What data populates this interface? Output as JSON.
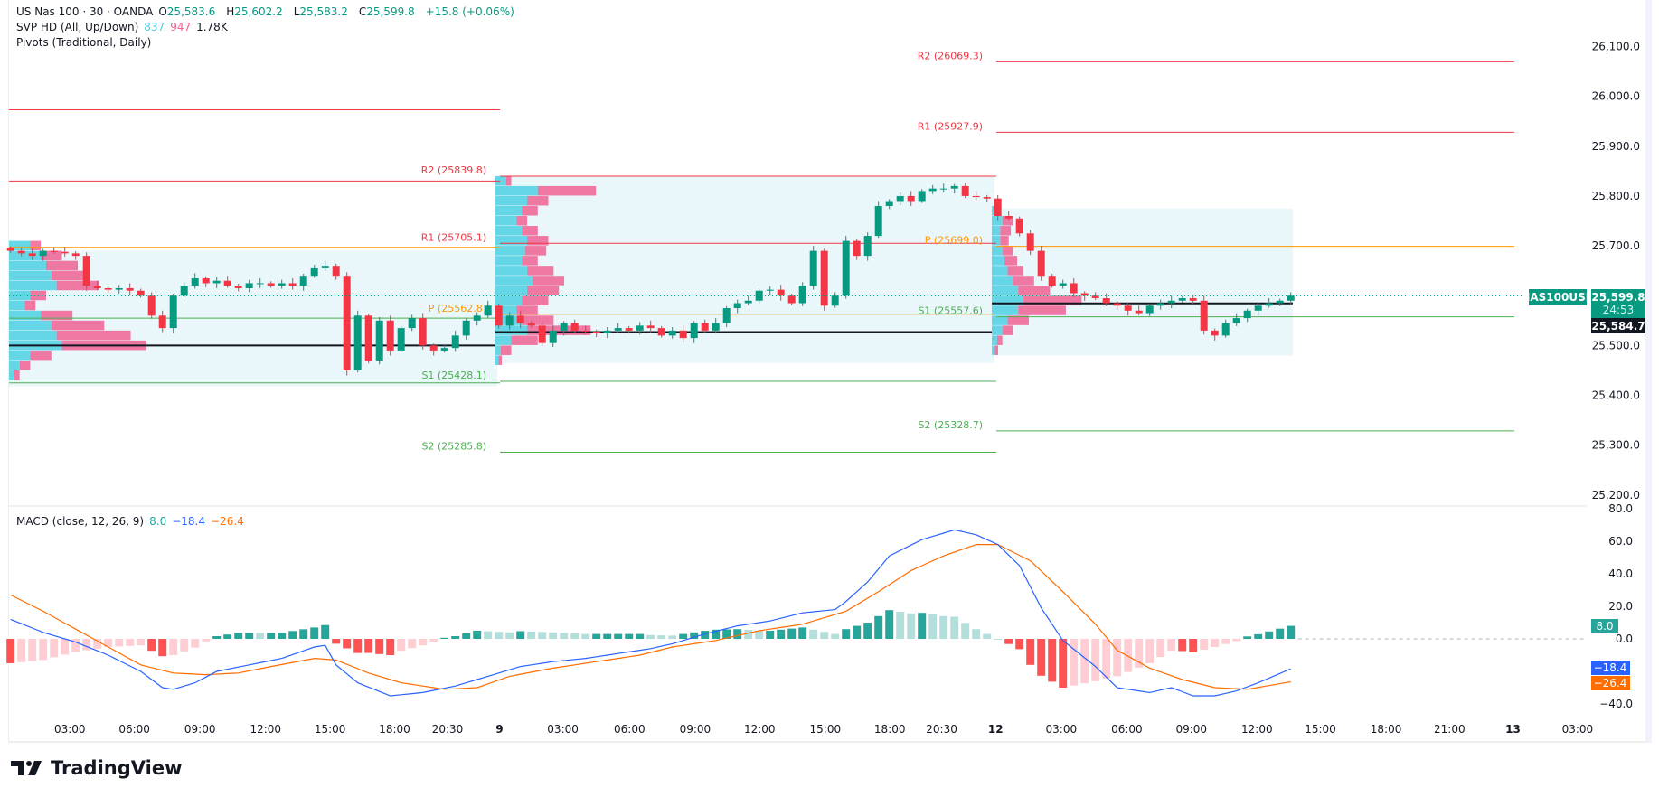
{
  "legend": {
    "symbol": "US Nas 100 · 30 · OANDA",
    "o_label": "O",
    "o": "25,583.6",
    "h_label": "H",
    "h": "25,602.2",
    "l_label": "L",
    "l": "25,583.2",
    "c_label": "C",
    "c": "25,599.8",
    "change": "+15.8 (+0.06%)",
    "svp": "SVP HD (All, Up/Down)",
    "svp_up": "837",
    "svp_down": "947",
    "svp_total": "1.78K",
    "pivots": "Pivots (Traditional, Daily)",
    "macd": "MACD (close, 12, 26, 9)",
    "macd_hist": "8.0",
    "macd_line": "−18.4",
    "macd_signal": "−26.4"
  },
  "price_axis": {
    "ticks": [
      "26,100.0",
      "26,000.0",
      "25,900.0",
      "25,800.0",
      "25,700.0",
      "25,600.0",
      "25,500.0",
      "25,400.0",
      "25,300.0",
      "25,200.0"
    ],
    "tick_values": [
      26100,
      26000,
      25900,
      25800,
      25700,
      25600,
      25500,
      25400,
      25300,
      25200
    ],
    "symbol_tag": "NAS100USD",
    "last_price": "25,599.8",
    "countdown": "24:53",
    "poc_price": "25,584.7"
  },
  "macd_axis": {
    "ticks": [
      "80.0",
      "60.0",
      "40.0",
      "20.0",
      "0.0",
      "−40.0"
    ],
    "tick_values": [
      80,
      60,
      40,
      20,
      0,
      -40
    ],
    "hist_tag": "8.0",
    "macd_tag": "−18.4",
    "signal_tag": "−26.4"
  },
  "time_axis": {
    "labels": [
      "03:00",
      "06:00",
      "09:00",
      "12:00",
      "15:00",
      "18:00",
      "20:30",
      "9",
      "03:00",
      "06:00",
      "09:00",
      "12:00",
      "15:00",
      "18:00",
      "20:30",
      "12",
      "03:00",
      "06:00",
      "09:00",
      "12:00",
      "15:00",
      "18:00",
      "21:00",
      "13",
      "03:00"
    ]
  },
  "colors": {
    "up": "#089981",
    "down": "#f23645",
    "resistance": "#f23645",
    "pivot": "#ff9800",
    "support": "#4caf50",
    "vp_up": "#4dd0e1",
    "vp_down": "#f06292",
    "vp_box": "#e9f7fb",
    "macd": "#2962ff",
    "signal": "#ff6d00",
    "hist_up_strong": "#26a69a",
    "hist_up_weak": "#b2dfdb",
    "hist_down_strong": "#ff5252",
    "hist_down_weak": "#ffcdd2"
  },
  "pivots": [
    {
      "levels": [
        {
          "name": "",
          "value": 25973,
          "type": "resistance"
        },
        {
          "name": "",
          "value": 25830,
          "type": "resistance"
        },
        {
          "name": "",
          "value": 25697,
          "type": "pivot"
        },
        {
          "name": "",
          "value": 25555,
          "type": "support"
        },
        {
          "name": "",
          "value": 25425,
          "type": "support"
        }
      ]
    },
    {
      "levels": [
        {
          "name": "R2 (25839.8)",
          "value": 25839.8,
          "type": "resistance"
        },
        {
          "name": "R1 (25705.1)",
          "value": 25705.1,
          "type": "resistance"
        },
        {
          "name": "P (25562.8)",
          "value": 25562.8,
          "type": "pivot"
        },
        {
          "name": "S1 (25428.1)",
          "value": 25428.1,
          "type": "support"
        },
        {
          "name": "S2 (25285.8)",
          "value": 25285.8,
          "type": "support"
        }
      ]
    },
    {
      "levels": [
        {
          "name": "R2 (26069.3)",
          "value": 26069.3,
          "type": "resistance"
        },
        {
          "name": "R1 (25927.9)",
          "value": 25927.9,
          "type": "resistance"
        },
        {
          "name": "P (25699.0)",
          "value": 25699.0,
          "type": "pivot"
        },
        {
          "name": "S1 (25557.6)",
          "value": 25557.6,
          "type": "support"
        },
        {
          "name": "S2 (25328.7)",
          "value": 25328.7,
          "type": "support"
        }
      ]
    }
  ],
  "chart_data": [
    {
      "type": "candlestick",
      "title": "US Nas 100 · 30 · OANDA",
      "ylim": [
        25200,
        26100
      ],
      "closes": [
        25690,
        25685,
        25680,
        25690,
        25688,
        25685,
        25680,
        25620,
        25615,
        25612,
        25615,
        25610,
        25600,
        25560,
        25535,
        25600,
        25620,
        25635,
        25625,
        25630,
        25620,
        25615,
        25625,
        25625,
        25620,
        25625,
        25620,
        25640,
        25655,
        25660,
        25640,
        25450,
        25560,
        25470,
        25550,
        25490,
        25535,
        25555,
        25500,
        25490,
        25495,
        25520,
        25550,
        25560,
        25580,
        25540,
        25560,
        25545,
        25540,
        25505,
        25530,
        25545,
        25530,
        25528,
        25525,
        25530,
        25535,
        25530,
        25540,
        25535,
        25520,
        25530,
        25515,
        25545,
        25530,
        25545,
        25575,
        25585,
        25590,
        25610,
        25612,
        25600,
        25585,
        25620,
        25690,
        25580,
        25600,
        25710,
        25680,
        25720,
        25780,
        25790,
        25800,
        25790,
        25810,
        25815,
        25815,
        25820,
        25800,
        25798,
        25795,
        25760,
        25755,
        25725,
        25690,
        25640,
        25620,
        25625,
        25605,
        25600,
        25595,
        25585,
        25580,
        25570,
        25565,
        25580,
        25585,
        25590,
        25595,
        25590,
        25530,
        25520,
        25545,
        25555,
        25570,
        25580,
        25585,
        25590,
        25599.8
      ],
      "last": 25599.8
    },
    {
      "type": "volume_profile",
      "sessions": [
        {
          "high": 25690,
          "low": 25418,
          "poc": 25500,
          "rows": [
            [
              25700,
              20,
              10
            ],
            [
              25680,
              30,
              20
            ],
            [
              25660,
              35,
              30
            ],
            [
              25640,
              40,
              35
            ],
            [
              25620,
              45,
              40
            ],
            [
              25600,
              20,
              15
            ],
            [
              25580,
              15,
              10
            ],
            [
              25560,
              30,
              30
            ],
            [
              25540,
              40,
              50
            ],
            [
              25520,
              45,
              70
            ],
            [
              25500,
              50,
              80
            ],
            [
              25480,
              20,
              20
            ],
            [
              25460,
              10,
              10
            ],
            [
              25440,
              5,
              5
            ]
          ]
        },
        {
          "high": 25840,
          "low": 25465,
          "poc": 25527,
          "rows": [
            [
              25830,
              10,
              5
            ],
            [
              25810,
              40,
              55
            ],
            [
              25790,
              30,
              20
            ],
            [
              25770,
              25,
              15
            ],
            [
              25750,
              20,
              10
            ],
            [
              25730,
              25,
              15
            ],
            [
              25710,
              30,
              20
            ],
            [
              25690,
              28,
              20
            ],
            [
              25670,
              25,
              15
            ],
            [
              25650,
              30,
              25
            ],
            [
              25630,
              35,
              30
            ],
            [
              25610,
              30,
              30
            ],
            [
              25590,
              25,
              25
            ],
            [
              25570,
              20,
              20
            ],
            [
              25550,
              25,
              30
            ],
            [
              25530,
              30,
              60
            ],
            [
              25510,
              15,
              25
            ],
            [
              25490,
              5,
              10
            ],
            [
              25470,
              3,
              3
            ]
          ]
        },
        {
          "high": 25775,
          "low": 25480,
          "poc": 25584.7,
          "rows": [
            [
              25770,
              5,
              3
            ],
            [
              25750,
              10,
              10
            ],
            [
              25730,
              8,
              10
            ],
            [
              25710,
              8,
              8
            ],
            [
              25690,
              10,
              10
            ],
            [
              25670,
              12,
              12
            ],
            [
              25650,
              15,
              15
            ],
            [
              25630,
              20,
              20
            ],
            [
              25610,
              25,
              30
            ],
            [
              25590,
              30,
              55
            ],
            [
              25570,
              25,
              45
            ],
            [
              25550,
              15,
              20
            ],
            [
              25530,
              10,
              10
            ],
            [
              25510,
              5,
              5
            ],
            [
              25490,
              3,
              3
            ]
          ]
        }
      ]
    },
    {
      "type": "macd",
      "ylim": [
        -45,
        85
      ],
      "macd_knots": [
        [
          0,
          12
        ],
        [
          3,
          4
        ],
        [
          6,
          -2
        ],
        [
          9,
          -10
        ],
        [
          12,
          -20
        ],
        [
          14,
          -30
        ],
        [
          15,
          -31
        ],
        [
          17,
          -27
        ],
        [
          19,
          -20
        ],
        [
          22,
          -16
        ],
        [
          25,
          -12
        ],
        [
          28,
          -5
        ],
        [
          29,
          -4
        ],
        [
          30,
          -16
        ],
        [
          32,
          -27
        ],
        [
          35,
          -35
        ],
        [
          38,
          -33
        ],
        [
          41,
          -29
        ],
        [
          44,
          -23
        ],
        [
          47,
          -17
        ],
        [
          50,
          -14
        ],
        [
          53,
          -12
        ],
        [
          56,
          -9
        ],
        [
          59,
          -6
        ],
        [
          61,
          -3
        ],
        [
          64,
          3
        ],
        [
          67,
          8
        ],
        [
          70,
          11
        ],
        [
          73,
          16
        ],
        [
          76,
          18
        ],
        [
          77,
          23
        ],
        [
          79,
          35
        ],
        [
          81,
          51
        ],
        [
          84,
          61
        ],
        [
          87,
          67
        ],
        [
          89,
          64
        ],
        [
          91,
          58
        ],
        [
          93,
          45
        ],
        [
          95,
          19
        ],
        [
          97,
          -1
        ],
        [
          100,
          -17
        ],
        [
          102,
          -30
        ],
        [
          105,
          -33
        ],
        [
          107,
          -30
        ],
        [
          109,
          -35
        ],
        [
          111,
          -35
        ],
        [
          113,
          -32
        ],
        [
          115,
          -27
        ],
        [
          118,
          -18.4
        ]
      ],
      "signal_knots": [
        [
          0,
          27
        ],
        [
          3,
          17
        ],
        [
          6,
          6
        ],
        [
          9,
          -5
        ],
        [
          12,
          -16
        ],
        [
          15,
          -21
        ],
        [
          18,
          -22
        ],
        [
          21,
          -21
        ],
        [
          24,
          -17
        ],
        [
          28,
          -12
        ],
        [
          30,
          -13
        ],
        [
          33,
          -21
        ],
        [
          36,
          -27
        ],
        [
          40,
          -31
        ],
        [
          43,
          -30
        ],
        [
          46,
          -23
        ],
        [
          50,
          -18
        ],
        [
          54,
          -14
        ],
        [
          58,
          -10
        ],
        [
          61,
          -5
        ],
        [
          65,
          -1
        ],
        [
          69,
          5
        ],
        [
          73,
          9
        ],
        [
          77,
          17
        ],
        [
          80,
          29
        ],
        [
          83,
          42
        ],
        [
          86,
          51
        ],
        [
          89,
          58
        ],
        [
          91,
          58
        ],
        [
          94,
          48
        ],
        [
          97,
          29
        ],
        [
          100,
          9
        ],
        [
          102,
          -7
        ],
        [
          105,
          -18
        ],
        [
          108,
          -25
        ],
        [
          111,
          -30
        ],
        [
          114,
          -31
        ],
        [
          118,
          -26.4
        ]
      ],
      "last_macd": -18.4,
      "last_signal": -26.4,
      "last_hist": 8.0
    }
  ],
  "branding": {
    "logo_text": "TradingView"
  }
}
